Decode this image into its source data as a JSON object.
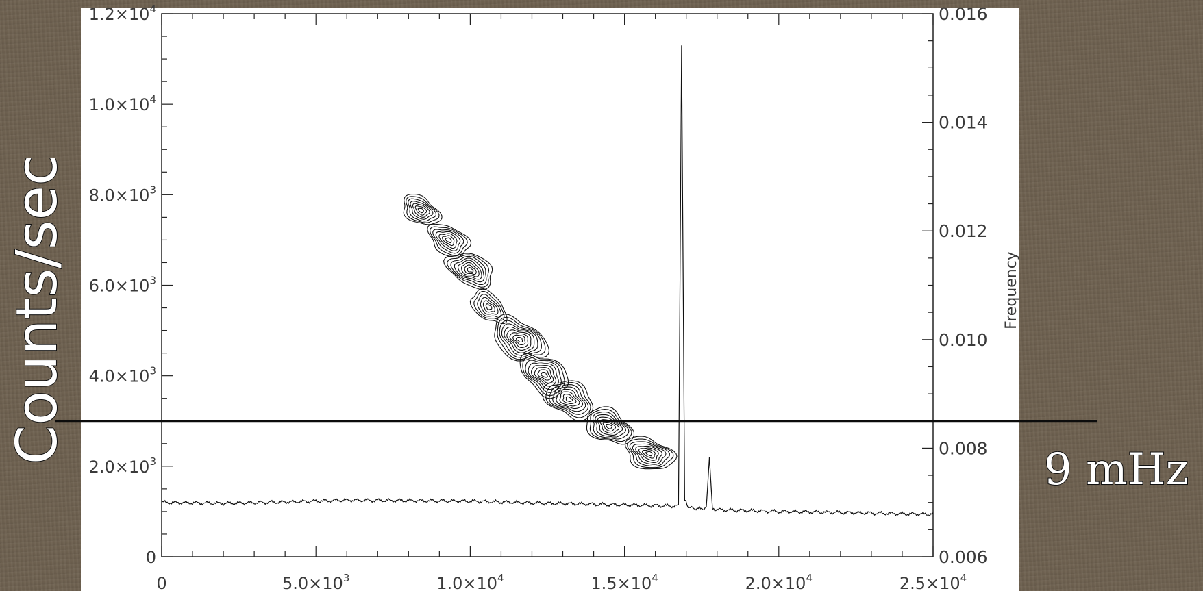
{
  "chart_data": {
    "type": "line",
    "xlim": [
      0,
      25000
    ],
    "ylim": [
      0,
      12000
    ],
    "y2lim": [
      0.006,
      0.016
    ],
    "x_ticks": [
      {
        "value": 0,
        "label": "0",
        "exp": ""
      },
      {
        "value": 5000,
        "label": "5.0×10",
        "exp": "3"
      },
      {
        "value": 10000,
        "label": "1.0×10",
        "exp": "4"
      },
      {
        "value": 15000,
        "label": "1.5×10",
        "exp": "4"
      },
      {
        "value": 20000,
        "label": "2.0×10",
        "exp": "4"
      },
      {
        "value": 25000,
        "label": "2.5×10",
        "exp": "4"
      }
    ],
    "y_ticks": [
      {
        "value": 0,
        "label": "0",
        "exp": ""
      },
      {
        "value": 2000,
        "label": "2.0×10",
        "exp": "3"
      },
      {
        "value": 4000,
        "label": "4.0×10",
        "exp": "3"
      },
      {
        "value": 6000,
        "label": "6.0×10",
        "exp": "3"
      },
      {
        "value": 8000,
        "label": "8.0×10",
        "exp": "3"
      },
      {
        "value": 10000,
        "label": "1.0×10",
        "exp": "4"
      },
      {
        "value": 12000,
        "label": "1.2×10",
        "exp": "4"
      }
    ],
    "y2_ticks": [
      {
        "value": 0.006,
        "label": "0.006"
      },
      {
        "value": 0.008,
        "label": "0.008"
      },
      {
        "value": 0.01,
        "label": "0.010"
      },
      {
        "value": 0.012,
        "label": "0.012"
      },
      {
        "value": 0.014,
        "label": "0.014"
      },
      {
        "value": 0.016,
        "label": "0.016"
      }
    ],
    "ylabel": "Counts/sec",
    "y2label": "Frequency",
    "reference_line": {
      "frequency": 0.0085,
      "label": "9 mHz"
    },
    "lightcurve": {
      "x": [
        0,
        2000,
        4000,
        6000,
        8000,
        10000,
        12000,
        14000,
        16000,
        16750,
        16850,
        16950,
        17100,
        17500,
        17650,
        17750,
        17850,
        18000,
        20000,
        22000,
        24000,
        25000
      ],
      "y": [
        1200,
        1180,
        1210,
        1250,
        1240,
        1230,
        1190,
        1160,
        1130,
        1120,
        11300,
        1250,
        1080,
        1060,
        1070,
        2200,
        1050,
        1040,
        1000,
        980,
        950,
        940
      ]
    },
    "contour_blobs": [
      {
        "x": 8400,
        "f": 0.01238,
        "rx": 550,
        "rf": 0.00028,
        "levels": 7
      },
      {
        "x": 9300,
        "f": 0.01183,
        "rx": 600,
        "rf": 0.0003,
        "levels": 7
      },
      {
        "x": 10000,
        "f": 0.01128,
        "rx": 700,
        "rf": 0.00032,
        "levels": 8
      },
      {
        "x": 10600,
        "f": 0.0106,
        "rx": 500,
        "rf": 0.0003,
        "levels": 6
      },
      {
        "x": 11600,
        "f": 0.01,
        "rx": 800,
        "rf": 0.0004,
        "levels": 9
      },
      {
        "x": 12400,
        "f": 0.00935,
        "rx": 700,
        "rf": 0.00038,
        "levels": 8
      },
      {
        "x": 13200,
        "f": 0.0089,
        "rx": 750,
        "rf": 0.00035,
        "levels": 8
      },
      {
        "x": 14500,
        "f": 0.0084,
        "rx": 700,
        "rf": 0.00033,
        "levels": 8
      },
      {
        "x": 15800,
        "f": 0.0079,
        "rx": 750,
        "rf": 0.0003,
        "levels": 8
      }
    ],
    "contour_line_color": "#111111"
  }
}
